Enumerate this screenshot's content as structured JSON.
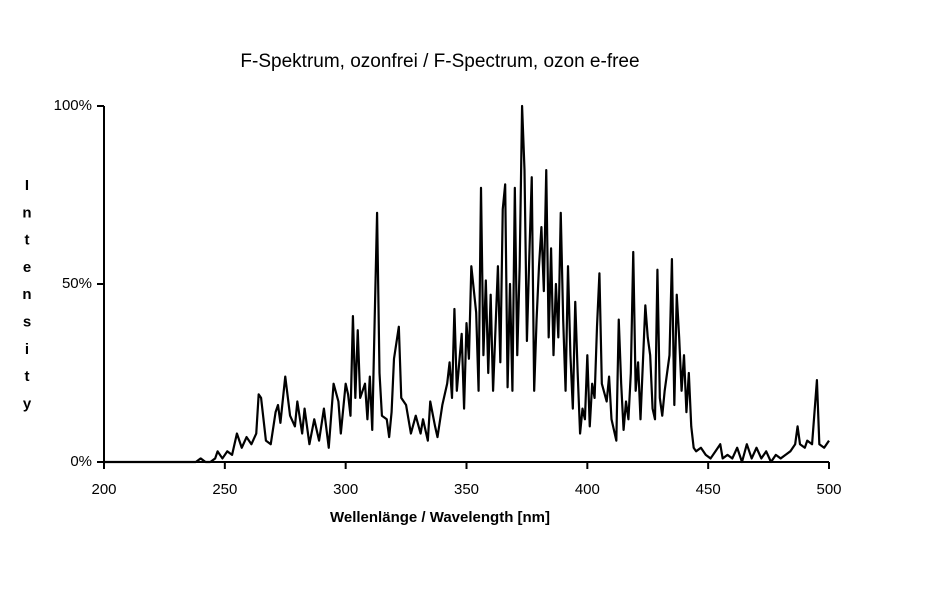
{
  "chart_data": {
    "type": "line",
    "title": "F-Spektrum, ozonfrei / F-Spectrum, ozon e-free",
    "xlabel": "Wellenlänge / Wavelength  [nm]",
    "ylabel": "Intensity",
    "color": "#000000",
    "x": [
      200,
      238,
      240,
      242,
      244,
      246,
      247,
      249,
      251,
      253,
      255,
      257,
      259,
      261,
      263,
      264,
      265,
      267,
      269,
      271,
      272,
      273,
      275,
      277,
      279,
      280,
      282,
      283,
      285,
      287,
      289,
      291,
      293,
      295,
      297,
      298,
      300,
      301,
      302,
      303,
      304,
      305,
      306,
      308,
      309,
      310,
      311,
      312,
      313,
      314,
      315,
      317,
      318,
      319,
      320,
      322,
      323,
      325,
      327,
      329,
      331,
      332,
      334,
      335,
      337,
      338,
      340,
      342,
      343,
      344,
      345,
      346,
      348,
      349,
      350,
      351,
      352,
      354,
      355,
      356,
      357,
      358,
      359,
      360,
      361,
      363,
      364,
      365,
      366,
      367,
      368,
      369,
      370,
      371,
      372,
      373,
      374,
      375,
      376,
      377,
      378,
      379,
      380,
      381,
      382,
      383,
      384,
      385,
      386,
      387,
      388,
      389,
      390,
      391,
      392,
      393,
      394,
      395,
      396,
      397,
      398,
      399,
      400,
      401,
      402,
      403,
      404,
      405,
      406,
      408,
      409,
      410,
      412,
      413,
      414,
      415,
      416,
      417,
      418,
      419,
      420,
      421,
      422,
      424,
      425,
      426,
      427,
      428,
      429,
      430,
      431,
      432,
      434,
      435,
      436,
      437,
      438,
      439,
      440,
      441,
      442,
      443,
      444,
      445,
      447,
      449,
      451,
      453,
      455,
      456,
      458,
      460,
      462,
      464,
      466,
      468,
      470,
      472,
      474,
      476,
      478,
      480,
      482,
      484,
      486,
      487,
      488,
      490,
      491,
      493,
      495,
      496,
      498,
      500
    ],
    "values": [
      0,
      0,
      1,
      0,
      0,
      1,
      3,
      1,
      3,
      2,
      8,
      4,
      7,
      5,
      8,
      19,
      18,
      6,
      5,
      14,
      16,
      11,
      24,
      13,
      10,
      17,
      8,
      15,
      5,
      12,
      6,
      15,
      4,
      22,
      17,
      8,
      22,
      19,
      13,
      41,
      18,
      37,
      18,
      22,
      12,
      24,
      9,
      40,
      70,
      25,
      13,
      12,
      7,
      14,
      29,
      38,
      18,
      16,
      8,
      13,
      8,
      12,
      6,
      17,
      10,
      7,
      16,
      22,
      28,
      18,
      43,
      20,
      36,
      15,
      39,
      29,
      55,
      42,
      20,
      77,
      30,
      51,
      25,
      47,
      20,
      55,
      28,
      71,
      78,
      21,
      50,
      20,
      77,
      30,
      55,
      100,
      82,
      34,
      58,
      80,
      20,
      40,
      55,
      66,
      48,
      82,
      35,
      60,
      30,
      50,
      35,
      70,
      40,
      20,
      55,
      30,
      15,
      45,
      25,
      8,
      15,
      12,
      30,
      10,
      22,
      18,
      38,
      53,
      22,
      17,
      24,
      12,
      6,
      40,
      22,
      9,
      17,
      12,
      25,
      59,
      20,
      28,
      12,
      44,
      35,
      30,
      15,
      12,
      54,
      18,
      13,
      20,
      30,
      57,
      16,
      47,
      35,
      20,
      30,
      14,
      25,
      10,
      4,
      3,
      4,
      2,
      1,
      3,
      5,
      1,
      2,
      1,
      4,
      0,
      5,
      1,
      4,
      1,
      3,
      0,
      2,
      1,
      2,
      3,
      5,
      10,
      5,
      4,
      6,
      5,
      23,
      5,
      4,
      6
    ],
    "xlim": [
      200,
      500
    ],
    "xticks": [
      200,
      250,
      300,
      350,
      400,
      450,
      500
    ],
    "ylim": [
      0,
      100
    ],
    "yticks": [
      {
        "value": 0,
        "label": "0%"
      },
      {
        "value": 50,
        "label": "50%"
      },
      {
        "value": 100,
        "label": "100%"
      }
    ]
  }
}
